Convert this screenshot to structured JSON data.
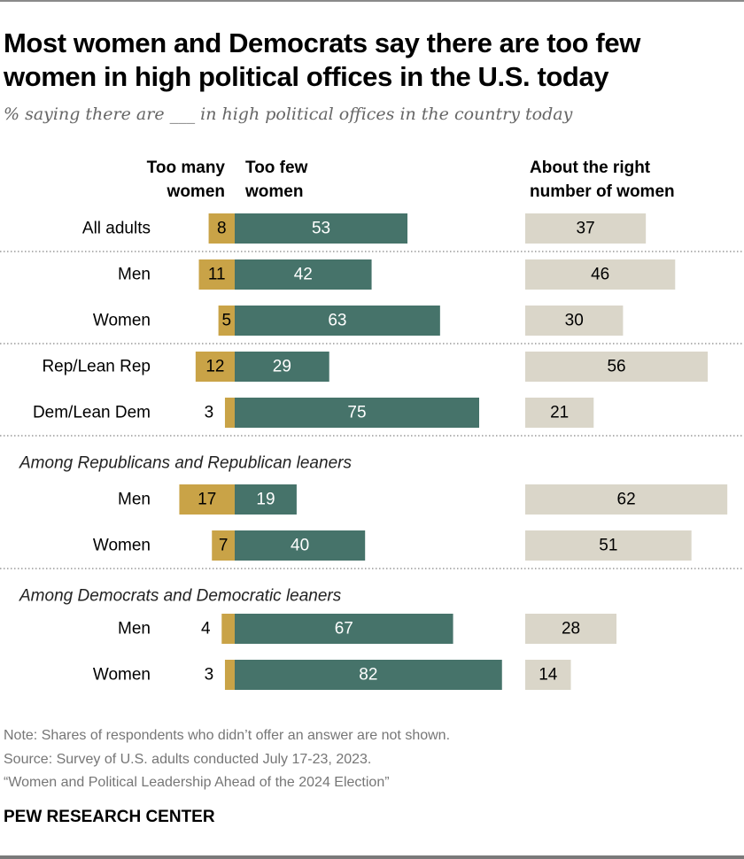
{
  "title": "Most women and Democrats say there are too few women in high political offices in the U.S. today",
  "subtitle": "% saying there are ___ in high political offices in the country today",
  "chart_data": {
    "type": "bar",
    "stacked": "diverging",
    "columns": [
      "Too many women",
      "Too few women",
      "About the right number of women"
    ],
    "colors": {
      "too_many": "#C9A347",
      "too_few": "#46736A",
      "right": "#DAD6C9"
    },
    "groups": [
      {
        "heading": "",
        "rows": [
          {
            "label": "All adults",
            "too_many": 8,
            "too_few": 53,
            "right": 37
          }
        ]
      },
      {
        "heading": "",
        "rows": [
          {
            "label": "Men",
            "too_many": 11,
            "too_few": 42,
            "right": 46
          },
          {
            "label": "Women",
            "too_many": 5,
            "too_few": 63,
            "right": 30
          }
        ]
      },
      {
        "heading": "",
        "rows": [
          {
            "label": "Rep/Lean Rep",
            "too_many": 12,
            "too_few": 29,
            "right": 56
          },
          {
            "label": "Dem/Lean Dem",
            "too_many": 3,
            "too_few": 75,
            "right": 21
          }
        ]
      },
      {
        "heading": "Among Republicans and Republican leaners",
        "rows": [
          {
            "label": "Men",
            "too_many": 17,
            "too_few": 19,
            "right": 62
          },
          {
            "label": "Women",
            "too_many": 7,
            "too_few": 40,
            "right": 51
          }
        ]
      },
      {
        "heading": "Among Democrats and Democratic leaners",
        "rows": [
          {
            "label": "Men",
            "too_many": 4,
            "too_few": 67,
            "right": 28
          },
          {
            "label": "Women",
            "too_many": 3,
            "too_few": 82,
            "right": 14
          }
        ]
      }
    ]
  },
  "headers": {
    "too_many": [
      "Too many",
      "women"
    ],
    "too_few": [
      "Too few",
      "women"
    ],
    "right": [
      "About the right",
      "number of women"
    ]
  },
  "notes": [
    "Note: Shares of respondents who didn’t offer an answer are not shown.",
    "Source: Survey of U.S. adults conducted July 17-23, 2023.",
    "“Women and Political Leadership Ahead of the 2024 Election”"
  ],
  "brand": "PEW RESEARCH CENTER"
}
